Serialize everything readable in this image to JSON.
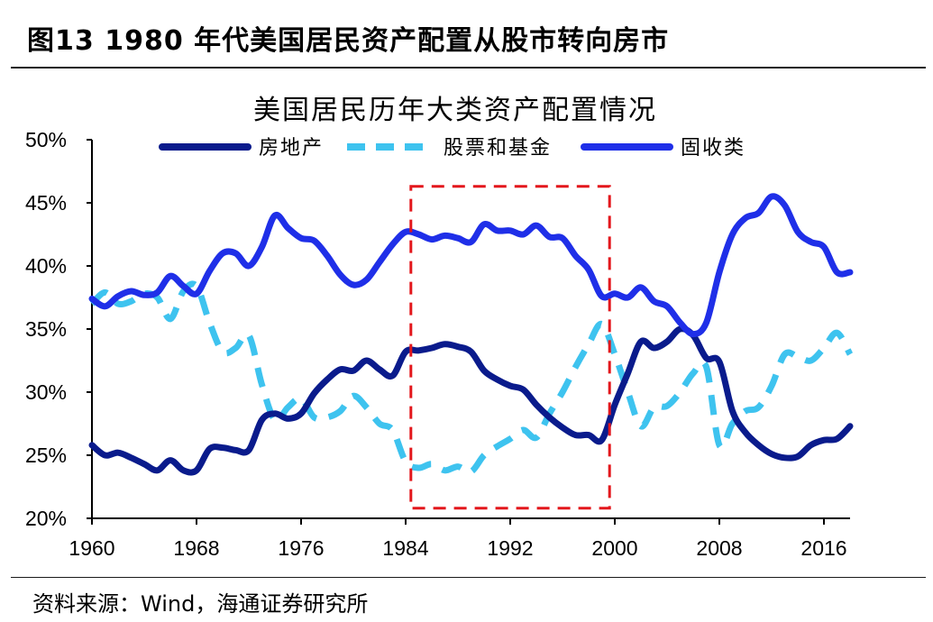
{
  "figure": {
    "title": "图13 1980 年代美国居民资产配置从股市转向房市",
    "source": "资料来源：Wind，海通证券研究所"
  },
  "chart_data": {
    "type": "line",
    "title": "美国居民历年大类资产配置情况",
    "xlabel": "",
    "ylabel": "",
    "xlim": [
      1960,
      2018
    ],
    "ylim": [
      20,
      50
    ],
    "x_ticks": [
      "1960",
      "1968",
      "1976",
      "1984",
      "1992",
      "2000",
      "2008",
      "2016"
    ],
    "y_ticks": [
      "20%",
      "25%",
      "30%",
      "35%",
      "40%",
      "45%",
      "50%"
    ],
    "legend_position": "top",
    "grid": false,
    "highlight": {
      "x_range": [
        1984.4,
        1999.6
      ],
      "y_range": [
        20.8,
        46.3
      ],
      "style": "red dashed rectangle"
    },
    "colors": {
      "real_estate": "#0a1b8c",
      "stocks_funds": "#3ec3ef",
      "fixed_income": "#1f2fe8",
      "highlight": "#e3171c"
    },
    "series": [
      {
        "name": "房地产",
        "style": "solid",
        "points": [
          [
            1960,
            25.8
          ],
          [
            1961,
            25.0
          ],
          [
            1962,
            25.2
          ],
          [
            1963,
            24.8
          ],
          [
            1964,
            24.3
          ],
          [
            1965,
            23.8
          ],
          [
            1966,
            24.6
          ],
          [
            1967,
            23.8
          ],
          [
            1968,
            23.8
          ],
          [
            1969,
            25.5
          ],
          [
            1970,
            25.6
          ],
          [
            1971,
            25.4
          ],
          [
            1972,
            25.4
          ],
          [
            1973,
            27.8
          ],
          [
            1974,
            28.3
          ],
          [
            1975,
            27.9
          ],
          [
            1976,
            28.3
          ],
          [
            1977,
            29.9
          ],
          [
            1978,
            31.0
          ],
          [
            1979,
            31.8
          ],
          [
            1980,
            31.7
          ],
          [
            1981,
            32.5
          ],
          [
            1982,
            31.8
          ],
          [
            1983,
            31.3
          ],
          [
            1984,
            33.2
          ],
          [
            1985,
            33.3
          ],
          [
            1986,
            33.5
          ],
          [
            1987,
            33.8
          ],
          [
            1988,
            33.6
          ],
          [
            1989,
            33.2
          ],
          [
            1990,
            31.7
          ],
          [
            1991,
            31.0
          ],
          [
            1992,
            30.5
          ],
          [
            1993,
            30.2
          ],
          [
            1994,
            29.0
          ],
          [
            1995,
            28.0
          ],
          [
            1996,
            27.2
          ],
          [
            1997,
            26.6
          ],
          [
            1998,
            26.6
          ],
          [
            1999,
            26.2
          ],
          [
            2000,
            29.0
          ],
          [
            2001,
            31.5
          ],
          [
            2002,
            34.0
          ],
          [
            2003,
            33.5
          ],
          [
            2004,
            34.0
          ],
          [
            2005,
            35.0
          ],
          [
            2006,
            34.5
          ],
          [
            2007,
            32.7
          ],
          [
            2008,
            32.4
          ],
          [
            2009,
            28.5
          ],
          [
            2010,
            26.8
          ],
          [
            2011,
            25.8
          ],
          [
            2012,
            25.1
          ],
          [
            2013,
            24.8
          ],
          [
            2014,
            24.9
          ],
          [
            2015,
            25.8
          ],
          [
            2016,
            26.2
          ],
          [
            2017,
            26.3
          ],
          [
            2018,
            27.3
          ]
        ]
      },
      {
        "name": "股票和基金",
        "style": "dashed",
        "points": [
          [
            1960,
            37.0
          ],
          [
            1961,
            37.9
          ],
          [
            1962,
            37.0
          ],
          [
            1963,
            37.2
          ],
          [
            1964,
            37.8
          ],
          [
            1965,
            37.5
          ],
          [
            1966,
            35.8
          ],
          [
            1967,
            38.0
          ],
          [
            1968,
            38.4
          ],
          [
            1969,
            35.5
          ],
          [
            1970,
            33.2
          ],
          [
            1971,
            33.5
          ],
          [
            1972,
            34.5
          ],
          [
            1973,
            30.6
          ],
          [
            1974,
            27.8
          ],
          [
            1975,
            28.8
          ],
          [
            1976,
            29.5
          ],
          [
            1977,
            28.0
          ],
          [
            1978,
            28.0
          ],
          [
            1979,
            28.5
          ],
          [
            1980,
            29.7
          ],
          [
            1981,
            28.8
          ],
          [
            1982,
            27.5
          ],
          [
            1983,
            27.0
          ],
          [
            1984,
            24.5
          ],
          [
            1985,
            24.0
          ],
          [
            1986,
            24.3
          ],
          [
            1987,
            23.8
          ],
          [
            1988,
            24.1
          ],
          [
            1989,
            23.7
          ],
          [
            1990,
            25.0
          ],
          [
            1991,
            25.7
          ],
          [
            1992,
            26.3
          ],
          [
            1993,
            27.0
          ],
          [
            1994,
            26.4
          ],
          [
            1995,
            28.3
          ],
          [
            1996,
            30.0
          ],
          [
            1997,
            32.0
          ],
          [
            1998,
            33.8
          ],
          [
            1999,
            35.4
          ],
          [
            2000,
            33.0
          ],
          [
            2001,
            30.0
          ],
          [
            2002,
            27.3
          ],
          [
            2003,
            28.8
          ],
          [
            2004,
            28.9
          ],
          [
            2005,
            30.0
          ],
          [
            2006,
            31.5
          ],
          [
            2007,
            32.0
          ],
          [
            2008,
            25.8
          ],
          [
            2009,
            27.5
          ],
          [
            2010,
            28.5
          ],
          [
            2011,
            28.8
          ],
          [
            2012,
            30.5
          ],
          [
            2013,
            33.0
          ],
          [
            2014,
            32.8
          ],
          [
            2015,
            32.5
          ],
          [
            2016,
            33.5
          ],
          [
            2017,
            34.7
          ],
          [
            2018,
            33.0
          ]
        ]
      },
      {
        "name": "固收类",
        "style": "solid",
        "points": [
          [
            1960,
            37.4
          ],
          [
            1961,
            36.8
          ],
          [
            1962,
            37.6
          ],
          [
            1963,
            38.0
          ],
          [
            1964,
            37.7
          ],
          [
            1965,
            37.9
          ],
          [
            1966,
            39.2
          ],
          [
            1967,
            38.4
          ],
          [
            1968,
            37.8
          ],
          [
            1969,
            39.6
          ],
          [
            1970,
            41.0
          ],
          [
            1971,
            41.0
          ],
          [
            1972,
            40.0
          ],
          [
            1973,
            41.5
          ],
          [
            1974,
            44.0
          ],
          [
            1975,
            43.0
          ],
          [
            1976,
            42.2
          ],
          [
            1977,
            42.0
          ],
          [
            1978,
            40.8
          ],
          [
            1979,
            39.3
          ],
          [
            1980,
            38.5
          ],
          [
            1981,
            38.9
          ],
          [
            1982,
            40.3
          ],
          [
            1983,
            41.7
          ],
          [
            1984,
            42.7
          ],
          [
            1985,
            42.5
          ],
          [
            1986,
            42.1
          ],
          [
            1987,
            42.4
          ],
          [
            1988,
            42.2
          ],
          [
            1989,
            41.9
          ],
          [
            1990,
            43.3
          ],
          [
            1991,
            42.8
          ],
          [
            1992,
            42.8
          ],
          [
            1993,
            42.5
          ],
          [
            1994,
            43.2
          ],
          [
            1995,
            42.3
          ],
          [
            1996,
            42.2
          ],
          [
            1997,
            40.8
          ],
          [
            1998,
            39.7
          ],
          [
            1999,
            37.6
          ],
          [
            2000,
            37.8
          ],
          [
            2001,
            37.5
          ],
          [
            2002,
            38.3
          ],
          [
            2003,
            37.2
          ],
          [
            2004,
            36.8
          ],
          [
            2005,
            35.5
          ],
          [
            2006,
            34.6
          ],
          [
            2007,
            35.5
          ],
          [
            2008,
            39.5
          ],
          [
            2009,
            42.5
          ],
          [
            2010,
            43.8
          ],
          [
            2011,
            44.2
          ],
          [
            2012,
            45.5
          ],
          [
            2013,
            44.8
          ],
          [
            2014,
            42.7
          ],
          [
            2015,
            41.9
          ],
          [
            2016,
            41.5
          ],
          [
            2017,
            39.5
          ],
          [
            2018,
            39.5
          ]
        ]
      }
    ]
  }
}
